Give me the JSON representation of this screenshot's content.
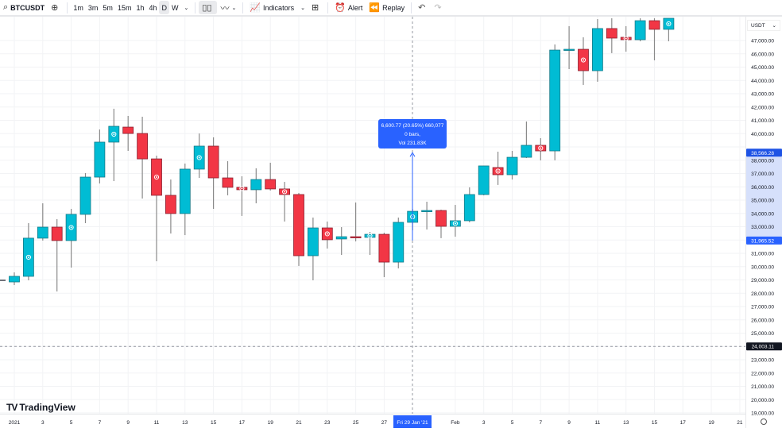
{
  "toolbar": {
    "symbol": "BTCUSDT",
    "intervals": [
      "1m",
      "3m",
      "5m",
      "15m",
      "1h",
      "4h",
      "D",
      "W"
    ],
    "active_interval": "D",
    "indicators_label": "Indicators",
    "alert_label": "Alert",
    "replay_label": "Replay"
  },
  "price_axis": {
    "currency": "USDT",
    "last_price_label": "38,566.28",
    "measure_start_label": "31,965.52",
    "crosshair_price_label": "24,003.11"
  },
  "time_axis": {
    "labels": [
      "2021",
      "3",
      "5",
      "7",
      "9",
      "11",
      "13",
      "15",
      "17",
      "19",
      "21",
      "23",
      "25",
      "27",
      "Feb",
      "3",
      "5",
      "7",
      "9",
      "11",
      "13",
      "15",
      "17",
      "19",
      "21"
    ],
    "crosshair_label": "Fri 29 Jan '21"
  },
  "measure_tooltip": {
    "line1": "6,600.77 (20.65%) 660,077",
    "line2": "0 bars,",
    "line3": "Vol 231.83K"
  },
  "logo_text": "TradingView",
  "colors": {
    "up": "#00bcd4",
    "down": "#f23645",
    "accent": "#2962ff",
    "dark_label": "#131722"
  },
  "chart_data": {
    "type": "candlestick",
    "ylim": [
      18500,
      48700
    ],
    "yticks": [
      19000,
      20000,
      21000,
      22000,
      23000,
      24000,
      25000,
      26000,
      27000,
      28000,
      29000,
      30000,
      31000,
      32000,
      33000,
      34000,
      35000,
      36000,
      37000,
      38000,
      39000,
      40000,
      41000,
      42000,
      43000,
      44000,
      45000,
      46000,
      47000
    ],
    "candles": [
      {
        "date": "2021-01-01",
        "o": 28850,
        "h": 29570,
        "l": 28610,
        "c": 29270
      },
      {
        "date": "2021-01-02",
        "o": 29270,
        "h": 33270,
        "l": 28970,
        "c": 32140
      },
      {
        "date": "2021-01-03",
        "o": 32140,
        "h": 34760,
        "l": 31960,
        "c": 32970
      },
      {
        "date": "2021-01-04",
        "o": 32970,
        "h": 33570,
        "l": 28130,
        "c": 31960
      },
      {
        "date": "2021-01-05",
        "o": 31960,
        "h": 34340,
        "l": 29930,
        "c": 33930
      },
      {
        "date": "2021-01-06",
        "o": 33930,
        "h": 37030,
        "l": 33270,
        "c": 36730
      },
      {
        "date": "2021-01-07",
        "o": 36730,
        "h": 40310,
        "l": 36250,
        "c": 39360
      },
      {
        "date": "2021-01-08",
        "o": 39360,
        "h": 41870,
        "l": 36430,
        "c": 40550
      },
      {
        "date": "2021-01-09",
        "o": 40490,
        "h": 41330,
        "l": 38700,
        "c": 40010
      },
      {
        "date": "2021-01-10",
        "o": 40010,
        "h": 41270,
        "l": 35120,
        "c": 38100
      },
      {
        "date": "2021-01-11",
        "o": 38100,
        "h": 38340,
        "l": 30400,
        "c": 35360
      },
      {
        "date": "2021-01-12",
        "o": 35360,
        "h": 36550,
        "l": 32490,
        "c": 33990
      },
      {
        "date": "2021-01-13",
        "o": 33990,
        "h": 37750,
        "l": 32370,
        "c": 37330
      },
      {
        "date": "2021-01-14",
        "o": 37330,
        "h": 40010,
        "l": 36670,
        "c": 39060
      },
      {
        "date": "2021-01-15",
        "o": 39060,
        "h": 39720,
        "l": 34340,
        "c": 36670
      },
      {
        "date": "2021-01-16",
        "o": 36670,
        "h": 37930,
        "l": 35360,
        "c": 35960
      },
      {
        "date": "2021-01-17",
        "o": 35960,
        "h": 36790,
        "l": 33810,
        "c": 35780
      },
      {
        "date": "2021-01-18",
        "o": 35780,
        "h": 37390,
        "l": 34760,
        "c": 36550
      },
      {
        "date": "2021-01-19",
        "o": 36550,
        "h": 37810,
        "l": 35720,
        "c": 35840
      },
      {
        "date": "2021-01-20",
        "o": 35840,
        "h": 36370,
        "l": 33390,
        "c": 35420
      },
      {
        "date": "2021-01-21",
        "o": 35420,
        "h": 35540,
        "l": 30050,
        "c": 30820
      },
      {
        "date": "2021-01-22",
        "o": 30820,
        "h": 33690,
        "l": 28970,
        "c": 32910
      },
      {
        "date": "2021-01-23",
        "o": 32910,
        "h": 33390,
        "l": 31360,
        "c": 32020
      },
      {
        "date": "2021-01-24",
        "o": 32080,
        "h": 32970,
        "l": 30880,
        "c": 32250
      },
      {
        "date": "2021-01-25",
        "o": 32250,
        "h": 34820,
        "l": 31900,
        "c": 32200
      },
      {
        "date": "2021-01-26",
        "o": 32200,
        "h": 32610,
        "l": 30880,
        "c": 32430
      },
      {
        "date": "2021-01-27",
        "o": 32430,
        "h": 32550,
        "l": 29210,
        "c": 30340
      },
      {
        "date": "2021-01-28",
        "o": 30340,
        "h": 33690,
        "l": 29870,
        "c": 33330
      },
      {
        "date": "2021-01-29",
        "o": 33330,
        "h": 34340,
        "l": 32730,
        "c": 34160
      },
      {
        "date": "2021-01-30",
        "o": 34160,
        "h": 34880,
        "l": 32790,
        "c": 34220
      },
      {
        "date": "2021-01-31",
        "o": 34220,
        "h": 34280,
        "l": 32140,
        "c": 33030
      },
      {
        "date": "2021-02-01",
        "o": 33030,
        "h": 34640,
        "l": 32250,
        "c": 33450
      },
      {
        "date": "2021-02-02",
        "o": 33450,
        "h": 35960,
        "l": 33330,
        "c": 35420
      },
      {
        "date": "2021-02-03",
        "o": 35420,
        "h": 37570,
        "l": 35360,
        "c": 37570
      },
      {
        "date": "2021-02-04",
        "o": 37450,
        "h": 38640,
        "l": 36140,
        "c": 36910
      },
      {
        "date": "2021-02-05",
        "o": 36910,
        "h": 38700,
        "l": 36550,
        "c": 38220
      },
      {
        "date": "2021-02-06",
        "o": 38220,
        "h": 40910,
        "l": 38160,
        "c": 39120
      },
      {
        "date": "2021-02-07",
        "o": 39120,
        "h": 39660,
        "l": 37990,
        "c": 38700
      },
      {
        "date": "2021-02-08",
        "o": 38700,
        "h": 46700,
        "l": 37990,
        "c": 46280
      },
      {
        "date": "2021-02-09",
        "o": 46280,
        "h": 48080,
        "l": 44850,
        "c": 46340
      },
      {
        "date": "2021-02-10",
        "o": 46340,
        "h": 47240,
        "l": 43660,
        "c": 44730
      },
      {
        "date": "2021-02-11",
        "o": 44730,
        "h": 48610,
        "l": 43900,
        "c": 47900
      },
      {
        "date": "2021-02-12",
        "o": 47900,
        "h": 48670,
        "l": 46050,
        "c": 47180
      },
      {
        "date": "2021-02-13",
        "o": 47240,
        "h": 48080,
        "l": 46160,
        "c": 47060
      },
      {
        "date": "2021-02-14",
        "o": 47060,
        "h": 48670,
        "l": 46940,
        "c": 48490
      },
      {
        "date": "2021-02-15",
        "o": 48490,
        "h": 48670,
        "l": 45510,
        "c": 47840
      },
      {
        "date": "2021-02-16",
        "o": 47840,
        "h": 48670,
        "l": 46940,
        "c": 48670
      }
    ]
  }
}
